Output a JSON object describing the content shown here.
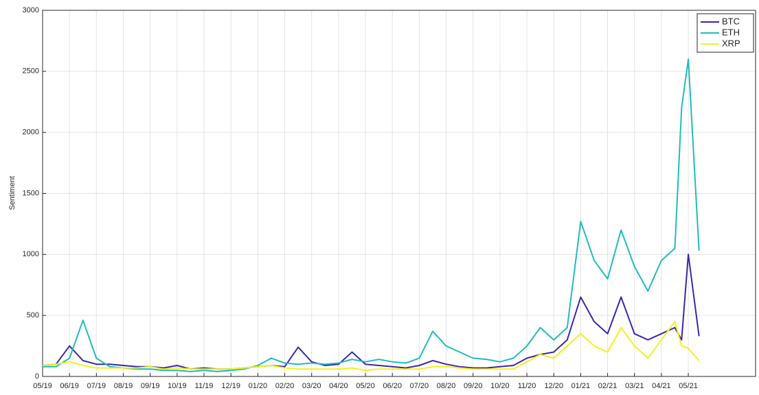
{
  "chart_data": {
    "type": "line",
    "y_label": "Sentiment",
    "x": [
      0,
      0.5,
      1,
      1.5,
      2,
      2.5,
      3,
      3.5,
      4,
      4.5,
      5,
      5.5,
      6,
      6.5,
      7,
      7.5,
      8,
      8.5,
      9,
      9.5,
      10,
      10.5,
      11,
      11.5,
      12,
      12.5,
      13,
      13.5,
      14,
      14.5,
      15,
      15.5,
      16,
      16.5,
      17,
      17.5,
      18,
      18.5,
      19,
      19.5,
      20,
      20.5,
      21,
      21.5,
      22,
      22.5,
      23,
      23.5,
      23.75,
      24,
      24.4
    ],
    "series": [
      {
        "name": "BTC",
        "color": "#3d26a8",
        "values": [
          90,
          100,
          250,
          130,
          100,
          100,
          90,
          80,
          80,
          70,
          90,
          60,
          70,
          60,
          60,
          70,
          80,
          90,
          80,
          240,
          120,
          90,
          100,
          200,
          100,
          90,
          80,
          70,
          90,
          130,
          100,
          80,
          70,
          70,
          80,
          90,
          150,
          180,
          200,
          300,
          650,
          450,
          350,
          650,
          350,
          300,
          350,
          400,
          300,
          1000,
          330
        ]
      },
      {
        "name": "ETH",
        "color": "#1fbcbc",
        "values": [
          80,
          80,
          150,
          460,
          150,
          80,
          70,
          60,
          60,
          50,
          50,
          40,
          50,
          40,
          50,
          60,
          90,
          150,
          110,
          100,
          110,
          100,
          110,
          140,
          120,
          140,
          120,
          110,
          150,
          370,
          250,
          200,
          150,
          140,
          120,
          150,
          250,
          400,
          300,
          400,
          1270,
          950,
          800,
          1200,
          900,
          700,
          950,
          1050,
          2200,
          2600,
          1030
        ]
      },
      {
        "name": "XRP",
        "color": "#f2f21a",
        "values": [
          90,
          100,
          120,
          90,
          70,
          70,
          70,
          70,
          80,
          60,
          70,
          60,
          60,
          60,
          60,
          70,
          80,
          90,
          70,
          60,
          60,
          60,
          60,
          70,
          50,
          60,
          60,
          60,
          60,
          80,
          80,
          70,
          60,
          60,
          60,
          60,
          120,
          180,
          150,
          250,
          350,
          250,
          200,
          400,
          250,
          150,
          300,
          450,
          250,
          230,
          130
        ]
      }
    ],
    "xlim": [
      0,
      26.5
    ],
    "xticks": [
      {
        "value": 0,
        "label": "05/19"
      },
      {
        "value": 1,
        "label": "06/19"
      },
      {
        "value": 2,
        "label": "07/19"
      },
      {
        "value": 3,
        "label": "08/19"
      },
      {
        "value": 4,
        "label": "09/19"
      },
      {
        "value": 5,
        "label": "10/19"
      },
      {
        "value": 6,
        "label": "11/19"
      },
      {
        "value": 7,
        "label": "12/19"
      },
      {
        "value": 8,
        "label": "01/20"
      },
      {
        "value": 9,
        "label": "02/20"
      },
      {
        "value": 10,
        "label": "03/20"
      },
      {
        "value": 11,
        "label": "04/20"
      },
      {
        "value": 12,
        "label": "05/20"
      },
      {
        "value": 13,
        "label": "06/20"
      },
      {
        "value": 14,
        "label": "07/20"
      },
      {
        "value": 15,
        "label": "08/20"
      },
      {
        "value": 16,
        "label": "09/20"
      },
      {
        "value": 17,
        "label": "10/20"
      },
      {
        "value": 18,
        "label": "11/20"
      },
      {
        "value": 19,
        "label": "12/20"
      },
      {
        "value": 20,
        "label": "01/21"
      },
      {
        "value": 21,
        "label": "02/21"
      },
      {
        "value": 22,
        "label": "03/21"
      },
      {
        "value": 23,
        "label": "04/21"
      },
      {
        "value": 24,
        "label": "05/21"
      }
    ],
    "ylim": [
      0,
      3000
    ],
    "yticks": [
      0,
      500,
      1000,
      1500,
      2000,
      2500,
      3000
    ],
    "grid": true,
    "legend": "top-right"
  }
}
